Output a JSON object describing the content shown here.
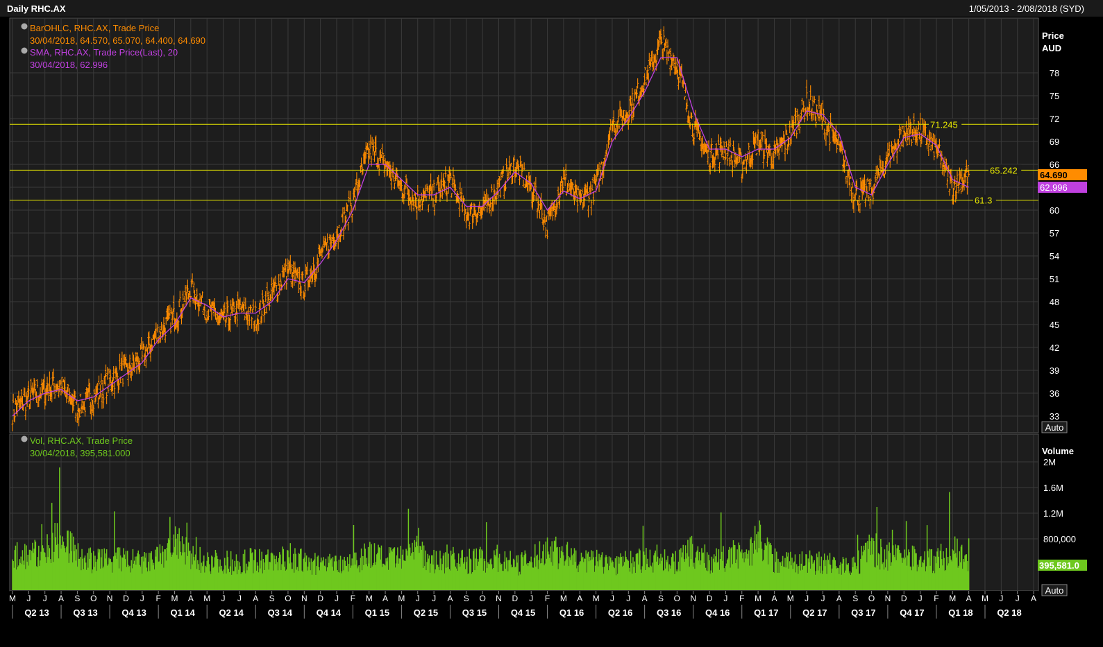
{
  "header": {
    "title": "Daily RHC.AX",
    "date_range": "1/05/2013 - 2/08/2018 (SYD)"
  },
  "colors": {
    "bar": "#ff8c00",
    "sma": "#c040e0",
    "volume": "#6ec81e",
    "level": "#e8e800",
    "last_price_badge": "#ff8c00",
    "sma_badge": "#c040e0",
    "volume_badge": "#6ec81e"
  },
  "legend": {
    "ohlc_title": "BarOHLC, RHC.AX, Trade Price",
    "ohlc_values": "30/04/2018, 64.570, 65.070, 64.400, 64.690",
    "sma_title": "SMA, RHC.AX, Trade Price(Last),  20",
    "sma_values": "30/04/2018, 62.996",
    "vol_title": "Vol, RHC.AX, Trade Price",
    "vol_values": "30/04/2018, 395,581.000"
  },
  "price_axis": {
    "title1": "Price",
    "title2": "AUD",
    "auto_label": "Auto",
    "ticks": [
      "33",
      "36",
      "39",
      "42",
      "45",
      "48",
      "51",
      "54",
      "57",
      "60",
      "63",
      "66",
      "69",
      "72",
      "75",
      "78"
    ]
  },
  "volume_axis": {
    "title": "Volume",
    "auto_label": "Auto",
    "ticks": [
      "800,000",
      "1.2M",
      "1.6M",
      "2M"
    ]
  },
  "badges": {
    "last_price": "64.690",
    "sma": "62.996",
    "volume": "395,581.0"
  },
  "levels": [
    {
      "value": 71.245,
      "label": "71.245"
    },
    {
      "value": 65.242,
      "label": "65.242"
    },
    {
      "value": 61.3,
      "label": "61.3"
    }
  ],
  "x_axis": {
    "months": [
      "M",
      "J",
      "J",
      "A",
      "S",
      "O",
      "N",
      "D",
      "J",
      "F",
      "M",
      "A",
      "M",
      "J",
      "J",
      "A",
      "S",
      "O",
      "N",
      "D",
      "J",
      "F",
      "M",
      "A",
      "M",
      "J",
      "J",
      "A",
      "S",
      "O",
      "N",
      "D",
      "J",
      "F",
      "M",
      "A",
      "M",
      "J",
      "J",
      "A",
      "S",
      "O",
      "N",
      "D",
      "J",
      "F",
      "M",
      "A",
      "M",
      "J",
      "J",
      "A",
      "S",
      "O",
      "N",
      "D",
      "J",
      "F",
      "M",
      "A",
      "M",
      "J",
      "J",
      "A"
    ],
    "quarters": [
      "Q2 13",
      "Q3 13",
      "Q4 13",
      "Q1 14",
      "Q2 14",
      "Q3 14",
      "Q4 14",
      "Q1 15",
      "Q2 15",
      "Q3 15",
      "Q4 15",
      "Q1 16",
      "Q2 16",
      "Q3 16",
      "Q4 16",
      "Q1 17",
      "Q2 17",
      "Q3 17",
      "Q4 17",
      "Q1 18",
      "Q2 18"
    ]
  },
  "chart_data": {
    "type": "line",
    "title": "Daily RHC.AX",
    "ylabel": "Price AUD",
    "ylim": [
      31,
      86
    ],
    "x_start": "2013-05",
    "x_end": "2018-08",
    "series": [
      {
        "name": "BarOHLC, RHC.AX, Trade Price",
        "x": [
          "2013-05",
          "2013-06",
          "2013-07",
          "2013-08",
          "2013-09",
          "2013-10",
          "2013-11",
          "2013-12",
          "2014-01",
          "2014-02",
          "2014-03",
          "2014-04",
          "2014-05",
          "2014-06",
          "2014-07",
          "2014-08",
          "2014-09",
          "2014-10",
          "2014-11",
          "2014-12",
          "2015-01",
          "2015-02",
          "2015-03",
          "2015-04",
          "2015-05",
          "2015-06",
          "2015-07",
          "2015-08",
          "2015-09",
          "2015-10",
          "2015-11",
          "2015-12",
          "2016-01",
          "2016-02",
          "2016-03",
          "2016-04",
          "2016-05",
          "2016-06",
          "2016-07",
          "2016-08",
          "2016-09",
          "2016-10",
          "2016-11",
          "2016-12",
          "2017-01",
          "2017-02",
          "2017-03",
          "2017-04",
          "2017-05",
          "2017-06",
          "2017-07",
          "2017-08",
          "2017-09",
          "2017-10",
          "2017-11",
          "2017-12",
          "2018-01",
          "2018-02",
          "2018-03",
          "2018-04"
        ],
        "values": [
          33.5,
          35.5,
          36.5,
          37,
          34,
          35.5,
          37.5,
          39,
          40.5,
          44,
          46,
          49.5,
          47,
          45.5,
          47,
          46,
          49,
          52,
          50,
          54,
          57,
          61,
          68,
          66,
          63,
          61.5,
          62,
          64,
          59.5,
          60,
          63,
          66,
          63,
          58,
          64,
          61,
          63,
          71,
          73,
          77,
          82,
          79,
          71,
          67,
          68,
          66,
          69,
          67,
          70,
          74,
          72,
          68,
          62,
          62.5,
          67,
          70,
          70.5,
          68,
          63,
          64.7
        ]
      },
      {
        "name": "SMA, RHC.AX, Trade Price(Last),  20",
        "x": [
          "2013-05",
          "2013-06",
          "2013-07",
          "2013-08",
          "2013-09",
          "2013-10",
          "2013-11",
          "2013-12",
          "2014-01",
          "2014-02",
          "2014-03",
          "2014-04",
          "2014-05",
          "2014-06",
          "2014-07",
          "2014-08",
          "2014-09",
          "2014-10",
          "2014-11",
          "2014-12",
          "2015-01",
          "2015-02",
          "2015-03",
          "2015-04",
          "2015-05",
          "2015-06",
          "2015-07",
          "2015-08",
          "2015-09",
          "2015-10",
          "2015-11",
          "2015-12",
          "2016-01",
          "2016-02",
          "2016-03",
          "2016-04",
          "2016-05",
          "2016-06",
          "2016-07",
          "2016-08",
          "2016-09",
          "2016-10",
          "2016-11",
          "2016-12",
          "2017-01",
          "2017-02",
          "2017-03",
          "2017-04",
          "2017-05",
          "2017-06",
          "2017-07",
          "2017-08",
          "2017-09",
          "2017-10",
          "2017-11",
          "2017-12",
          "2018-01",
          "2018-02",
          "2018-03",
          "2018-04"
        ],
        "values": [
          33,
          35,
          36,
          36.5,
          35,
          35.5,
          37,
          38.5,
          40,
          43,
          45,
          48.5,
          47.5,
          46,
          46.5,
          46.5,
          48,
          51,
          50.5,
          53,
          56,
          60,
          66,
          66,
          64,
          62,
          62,
          63,
          60.5,
          60.5,
          62.5,
          65,
          63.5,
          60,
          62.5,
          61.5,
          62.5,
          69,
          72,
          75.5,
          80,
          80,
          73,
          68,
          68,
          67,
          68,
          68,
          69.5,
          73,
          72.5,
          70,
          63,
          62,
          66,
          69.5,
          70,
          68.5,
          64,
          63
        ]
      },
      {
        "name": "Vol, RHC.AX, Trade Price",
        "x": [
          "2013-05",
          "2013-06",
          "2013-07",
          "2013-08",
          "2013-09",
          "2013-10",
          "2013-11",
          "2013-12",
          "2014-01",
          "2014-02",
          "2014-03",
          "2014-04",
          "2014-05",
          "2014-06",
          "2014-07",
          "2014-08",
          "2014-09",
          "2014-10",
          "2014-11",
          "2014-12",
          "2015-01",
          "2015-02",
          "2015-03",
          "2015-04",
          "2015-05",
          "2015-06",
          "2015-07",
          "2015-08",
          "2015-09",
          "2015-10",
          "2015-11",
          "2015-12",
          "2016-01",
          "2016-02",
          "2016-03",
          "2016-04",
          "2016-05",
          "2016-06",
          "2016-07",
          "2016-08",
          "2016-09",
          "2016-10",
          "2016-11",
          "2016-12",
          "2017-01",
          "2017-02",
          "2017-03",
          "2017-04",
          "2017-05",
          "2017-06",
          "2017-07",
          "2017-08",
          "2017-09",
          "2017-10",
          "2017-11",
          "2017-12",
          "2018-01",
          "2018-02",
          "2018-03",
          "2018-04"
        ],
        "values": [
          520000,
          560000,
          560000,
          900000,
          520000,
          450000,
          480000,
          470000,
          420000,
          480000,
          750000,
          500000,
          460000,
          430000,
          430000,
          480000,
          440000,
          520000,
          430000,
          400000,
          420000,
          460000,
          560000,
          470000,
          480000,
          700000,
          420000,
          480000,
          440000,
          480000,
          500000,
          400000,
          450000,
          650000,
          560000,
          450000,
          460000,
          420000,
          440000,
          460000,
          470000,
          430000,
          600000,
          450000,
          480000,
          520000,
          800000,
          470000,
          450000,
          430000,
          440000,
          400000,
          380000,
          650000,
          520000,
          500000,
          480000,
          460000,
          620000,
          395581
        ]
      }
    ]
  }
}
